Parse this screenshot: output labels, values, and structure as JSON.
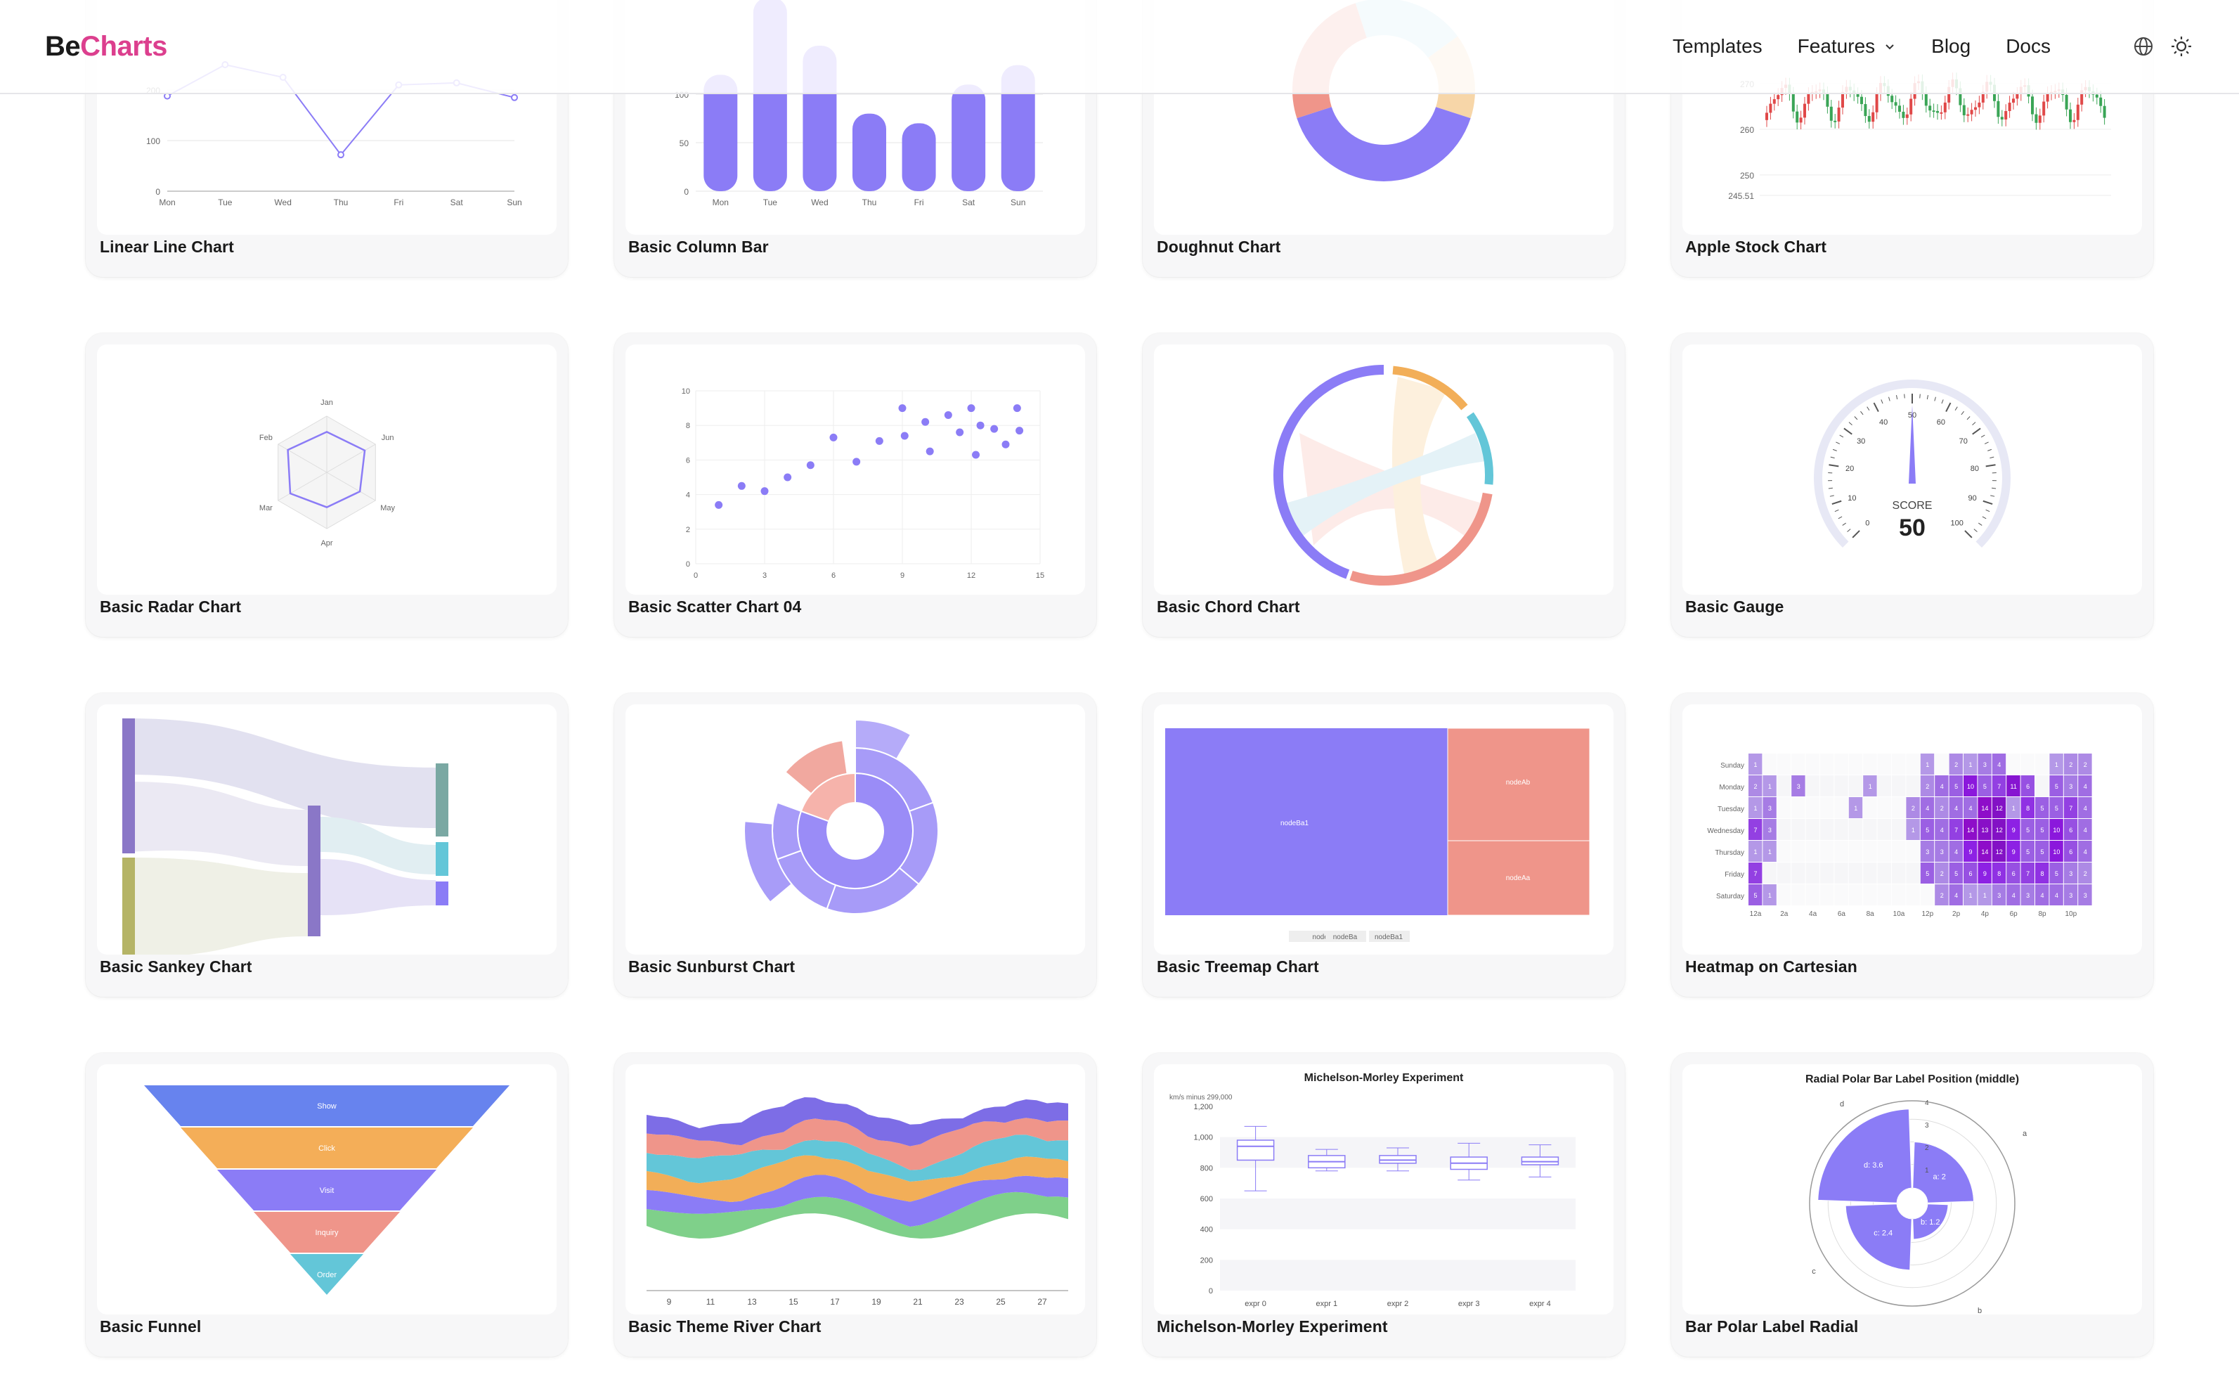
{
  "header": {
    "logo_be": "Be",
    "logo_charts": "Charts",
    "nav": [
      "Templates",
      "Features",
      "Blog",
      "Docs"
    ],
    "icons": [
      "globe-icon",
      "sun-icon",
      "chevron-down-icon"
    ]
  },
  "colors": {
    "primary": "#8b7cf6",
    "red": "#ef958a",
    "orange": "#f2ae58",
    "cyan": "#63c6d8",
    "green": "#7fd08a",
    "brand": "#dc3f8e"
  },
  "cards": [
    {
      "title": "Linear Line Chart"
    },
    {
      "title": "Basic Column Bar"
    },
    {
      "title": "Doughnut Chart"
    },
    {
      "title": "Apple Stock Chart"
    },
    {
      "title": "Basic Radar Chart"
    },
    {
      "title": "Basic Scatter Chart 04"
    },
    {
      "title": "Basic Chord Chart"
    },
    {
      "title": "Basic Gauge"
    },
    {
      "title": "Basic Sankey Chart"
    },
    {
      "title": "Basic Sunburst Chart"
    },
    {
      "title": "Basic Treemap Chart"
    },
    {
      "title": "Heatmap on Cartesian"
    },
    {
      "title": "Basic Funnel"
    },
    {
      "title": "Basic Theme River Chart"
    },
    {
      "title": "Michelson-Morley Experiment"
    },
    {
      "title": "Bar Polar Label Radial"
    }
  ],
  "chart_data": [
    {
      "type": "line",
      "days": [
        "Mon",
        "Tue",
        "Wed",
        "Thu",
        "Fri",
        "Sat",
        "Sun"
      ],
      "y_ticks": [
        "0",
        "100",
        "200"
      ],
      "values": [
        188,
        250,
        225,
        72,
        210,
        214,
        185
      ]
    },
    {
      "type": "bar",
      "days": [
        "Mon",
        "Tue",
        "Wed",
        "Thu",
        "Fri",
        "Sat",
        "Sun"
      ],
      "y_ticks": [
        "0",
        "50",
        "100"
      ],
      "values": [
        120,
        200,
        150,
        80,
        70,
        110,
        130
      ]
    },
    {
      "type": "pie",
      "slices": [
        {
          "value": 40,
          "color": "#8b7cf6"
        },
        {
          "value": 25,
          "color": "#ef958a"
        },
        {
          "value": 20,
          "color": "#b8e0ee"
        },
        {
          "value": 15,
          "color": "#f7d6a8"
        }
      ]
    },
    {
      "type": "bar",
      "subtype": "candlestick",
      "y_ticks": [
        "270",
        "260",
        "250",
        "245.51"
      ],
      "y_range": [
        245.51,
        272
      ]
    },
    {
      "type": "radar",
      "axes": [
        "Jan",
        "Jun",
        "May",
        "Apr",
        "Mar",
        "Feb"
      ],
      "values": [
        0.72,
        0.78,
        0.68,
        0.62,
        0.75,
        0.8
      ]
    },
    {
      "type": "scatter",
      "x_ticks": [
        "0",
        "3",
        "6",
        "9",
        "12",
        "15"
      ],
      "y_ticks": [
        "0",
        "2",
        "4",
        "6",
        "8",
        "10"
      ],
      "points": [
        [
          1,
          3.4
        ],
        [
          2,
          4.5
        ],
        [
          3,
          4.2
        ],
        [
          4,
          5
        ],
        [
          5,
          5.7
        ],
        [
          6,
          7.3
        ],
        [
          7,
          5.9
        ],
        [
          8,
          7.1
        ],
        [
          9,
          9
        ],
        [
          9.1,
          7.4
        ],
        [
          10,
          8.2
        ],
        [
          10.2,
          6.5
        ],
        [
          11,
          8.6
        ],
        [
          11.5,
          7.6
        ],
        [
          12,
          9
        ],
        [
          12.2,
          6.3
        ],
        [
          12.4,
          8
        ],
        [
          13,
          7.8
        ],
        [
          13.5,
          6.9
        ],
        [
          14,
          9
        ],
        [
          14.1,
          7.7
        ]
      ]
    },
    {
      "type": "pie",
      "subtype": "chord"
    },
    {
      "type": "pie",
      "subtype": "gauge",
      "ticks": [
        "0",
        "10",
        "20",
        "30",
        "40",
        "50",
        "60",
        "70",
        "80",
        "90",
        "100"
      ],
      "label": "SCORE",
      "value": "50"
    },
    {
      "type": "area",
      "subtype": "sankey"
    },
    {
      "type": "pie",
      "subtype": "sunburst"
    },
    {
      "type": "heatmap",
      "subtype": "treemap",
      "labels": [
        "nodeBa1",
        "nodeAb",
        "nodeAa"
      ],
      "legend": [
        "nodeB",
        "nodeBa",
        "nodeBa1"
      ]
    },
    {
      "type": "heatmap",
      "days": [
        "Sunday",
        "Monday",
        "Tuesday",
        "Wednesday",
        "Thursday",
        "Friday",
        "Saturday"
      ],
      "hours": [
        "12a",
        "2a",
        "4a",
        "6a",
        "8a",
        "10a",
        "12p",
        "2p",
        "4p",
        "6p",
        "8p",
        "10p"
      ],
      "cells": [
        [
          1,
          0,
          0,
          0,
          0,
          0,
          0,
          0,
          0,
          0,
          0,
          0,
          1,
          0,
          2,
          1,
          3,
          4,
          0,
          0,
          0,
          1,
          2,
          2,
          6
        ],
        [
          2,
          1,
          0,
          3,
          0,
          0,
          0,
          0,
          1,
          0,
          0,
          0,
          2,
          4,
          5,
          10,
          5,
          7,
          11,
          6,
          0,
          5,
          3,
          4,
          2
        ],
        [
          1,
          3,
          0,
          0,
          0,
          0,
          0,
          1,
          0,
          0,
          0,
          2,
          4,
          2,
          4,
          4,
          14,
          12,
          1,
          8,
          5,
          5,
          7,
          4,
          0
        ],
        [
          7,
          3,
          0,
          0,
          0,
          0,
          0,
          0,
          0,
          0,
          0,
          1,
          5,
          4,
          7,
          14,
          13,
          12,
          9,
          5,
          5,
          10,
          6,
          4,
          4,
          1
        ],
        [
          1,
          1,
          0,
          0,
          0,
          0,
          0,
          0,
          0,
          0,
          0,
          0,
          3,
          3,
          4,
          9,
          14,
          12,
          9,
          5,
          5,
          10,
          6,
          4,
          4,
          1
        ],
        [
          7,
          0,
          0,
          0,
          0,
          0,
          0,
          0,
          0,
          0,
          0,
          0,
          5,
          2,
          5,
          6,
          9,
          8,
          6,
          7,
          8,
          5,
          3,
          2,
          2
        ],
        [
          5,
          1,
          0,
          0,
          0,
          0,
          0,
          0,
          0,
          0,
          0,
          0,
          0,
          2,
          4,
          1,
          1,
          3,
          4,
          3,
          4,
          4,
          3,
          3,
          3
        ]
      ]
    },
    {
      "type": "bar",
      "subtype": "funnel",
      "stages": [
        "Show",
        "Click",
        "Visit",
        "Inquiry",
        "Order"
      ]
    },
    {
      "type": "area",
      "subtype": "themeriver",
      "x_ticks": [
        "9",
        "11",
        "13",
        "15",
        "17",
        "19",
        "21",
        "23",
        "25",
        "27"
      ]
    },
    {
      "type": "bar",
      "subtype": "boxplot",
      "title": "Michelson-Morley Experiment",
      "ylabel": "km/s minus 299,000",
      "y_ticks": [
        "0",
        "200",
        "400",
        "600",
        "800",
        "1,000",
        "1,200"
      ],
      "categories": [
        "expr 0",
        "expr 1",
        "expr 2",
        "expr 3",
        "expr 4"
      ],
      "boxes": [
        [
          650,
          850,
          940,
          980,
          1070
        ],
        [
          780,
          800,
          840,
          880,
          920
        ],
        [
          780,
          830,
          850,
          880,
          930
        ],
        [
          720,
          790,
          830,
          870,
          960
        ],
        [
          740,
          820,
          840,
          870,
          950
        ]
      ]
    },
    {
      "type": "bar",
      "subtype": "polar",
      "title": "Radial Polar Bar Label Position (middle)",
      "categories": [
        "a",
        "b",
        "c",
        "d"
      ],
      "values": [
        {
          "label": "a: 2",
          "value": 2
        },
        {
          "label": "b: 1.2",
          "value": 1.2
        },
        {
          "label": "c: 2.4",
          "value": 2.4
        },
        {
          "label": "d: 3.6",
          "value": 3.6
        }
      ],
      "ticks": [
        "1",
        "2",
        "3",
        "4"
      ]
    }
  ]
}
